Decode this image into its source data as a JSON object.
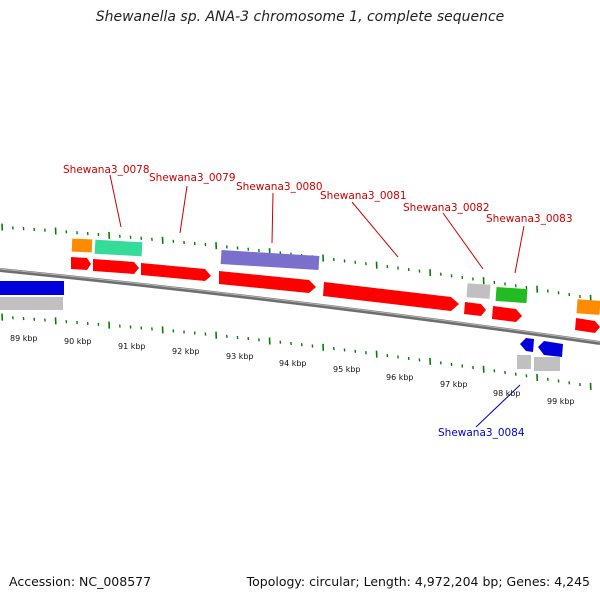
{
  "title": "Shewanella sp. ANA-3 chromosome 1, complete sequence",
  "footer": {
    "accession": "Accession: NC_008577",
    "summary": "Topology: circular; Length: 4,972,204 bp; Genes: 4,245"
  },
  "colors": {
    "cds": "#ff0000",
    "gene": "#c0c0c0",
    "backbone": "#808080",
    "tick": "#008000",
    "label_forward": "#cc0000",
    "label_reverse": "#0000cc",
    "orange": "#ff8c00",
    "teal": "#33dd99",
    "purple": "#7a6fcc",
    "green": "#22bb22",
    "blue": "#0000dd"
  },
  "kbp_labels": [
    "89 kbp",
    "90 kbp",
    "91 kbp",
    "92 kbp",
    "93 kbp",
    "94 kbp",
    "95 kbp",
    "96 kbp",
    "97 kbp",
    "98 kbp",
    "99 kbp"
  ],
  "gene_labels": [
    {
      "text": "Shewana3_0078",
      "strand": "forward"
    },
    {
      "text": "Shewana3_0079",
      "strand": "forward"
    },
    {
      "text": "Shewana3_0080",
      "strand": "forward"
    },
    {
      "text": "Shewana3_0081",
      "strand": "forward"
    },
    {
      "text": "Shewana3_0082",
      "strand": "forward"
    },
    {
      "text": "Shewana3_0083",
      "strand": "forward"
    },
    {
      "text": "Shewana3_0084",
      "strand": "reverse"
    }
  ]
}
